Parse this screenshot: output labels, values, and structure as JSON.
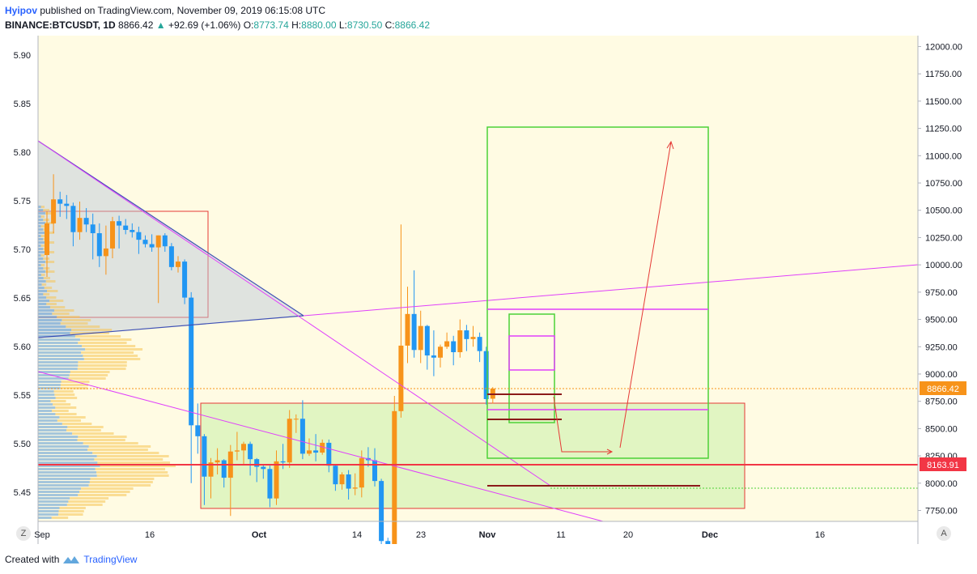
{
  "header": {
    "author": "Hyipov",
    "published_text": "published on TradingView.com, November 09, 2019 06:15:08 UTC",
    "symbol": "BINANCE:BTCUSDT, 1D",
    "last_price": "8866.42",
    "change": "+92.69 (+1.06%)",
    "open_label": "O:",
    "open": "8773.74",
    "high_label": "H:",
    "high": "8880.00",
    "low_label": "L:",
    "low": "8730.50",
    "close_label": "C:",
    "close": "8866.42"
  },
  "footer": {
    "created_with": "Created with",
    "brand": "TradingView"
  },
  "buttons": {
    "left": "Z",
    "right": "A"
  },
  "colors": {
    "background": "#fffbe3",
    "up": "#f7931a",
    "down": "#2196f3",
    "green_box": "#4cd137",
    "red_box": "#e53935",
    "magenta": "#e040fb",
    "blue_line": "#3f51b5",
    "price_tag": "#f7931a",
    "level_tag": "#f23645"
  },
  "chart_data": {
    "type": "candlestick",
    "title": "",
    "left_axis": {
      "ticks": [
        "5.90",
        "5.85",
        "5.80",
        "5.75",
        "5.70",
        "5.65",
        "5.60",
        "5.55",
        "5.50",
        "5.45"
      ],
      "range": [
        5.42,
        5.92
      ]
    },
    "right_axis": {
      "ticks": [
        "12000.00",
        "11750.00",
        "11500.00",
        "11250.00",
        "11000.00",
        "10750.00",
        "10500.00",
        "10250.00",
        "10000.00",
        "9750.00",
        "9500.00",
        "9250.00",
        "9000.00",
        "8750.00",
        "8500.00",
        "8250.00",
        "8000.00",
        "7750.00"
      ],
      "range": [
        7650,
        12100
      ]
    },
    "x_ticks": [
      "Sep",
      "16",
      "Oct",
      "14",
      "23",
      "Nov",
      "11",
      "20",
      "Dec",
      "16"
    ],
    "last_price_tag": "8866.42",
    "level_tag": "8163.91",
    "candles": [
      {
        "d": "Sep 02",
        "o": 10090,
        "h": 10490,
        "l": 9890,
        "c": 10380
      },
      {
        "d": "Sep 03",
        "o": 10380,
        "h": 10830,
        "l": 10290,
        "c": 10600
      },
      {
        "d": "Sep 04",
        "o": 10600,
        "h": 10670,
        "l": 10440,
        "c": 10560
      },
      {
        "d": "Sep 05",
        "o": 10560,
        "h": 10640,
        "l": 10420,
        "c": 10540
      },
      {
        "d": "Sep 06",
        "o": 10540,
        "h": 10570,
        "l": 10170,
        "c": 10300
      },
      {
        "d": "Sep 07",
        "o": 10300,
        "h": 10580,
        "l": 10230,
        "c": 10430
      },
      {
        "d": "Sep 08",
        "o": 10430,
        "h": 10520,
        "l": 10300,
        "c": 10370
      },
      {
        "d": "Sep 09",
        "o": 10370,
        "h": 10470,
        "l": 10050,
        "c": 10290
      },
      {
        "d": "Sep 10",
        "o": 10290,
        "h": 10380,
        "l": 9980,
        "c": 10080
      },
      {
        "d": "Sep 11",
        "o": 10080,
        "h": 10360,
        "l": 9910,
        "c": 10150
      },
      {
        "d": "Sep 12",
        "o": 10150,
        "h": 10440,
        "l": 10060,
        "c": 10400
      },
      {
        "d": "Sep 13",
        "o": 10400,
        "h": 10450,
        "l": 10150,
        "c": 10360
      },
      {
        "d": "Sep 14",
        "o": 10360,
        "h": 10420,
        "l": 10280,
        "c": 10320
      },
      {
        "d": "Sep 15",
        "o": 10320,
        "h": 10380,
        "l": 10250,
        "c": 10300
      },
      {
        "d": "Sep 16",
        "o": 10300,
        "h": 10350,
        "l": 10100,
        "c": 10230
      },
      {
        "d": "Sep 17",
        "o": 10230,
        "h": 10270,
        "l": 10160,
        "c": 10190
      },
      {
        "d": "Sep 18",
        "o": 10190,
        "h": 10280,
        "l": 10120,
        "c": 10160
      },
      {
        "d": "Sep 19",
        "o": 10160,
        "h": 10270,
        "l": 9650,
        "c": 10270
      },
      {
        "d": "Sep 20",
        "o": 10270,
        "h": 10290,
        "l": 10120,
        "c": 10170
      },
      {
        "d": "Sep 21",
        "o": 10170,
        "h": 10200,
        "l": 9950,
        "c": 9980
      },
      {
        "d": "Sep 22",
        "o": 9980,
        "h": 10080,
        "l": 9930,
        "c": 10030
      },
      {
        "d": "Sep 23",
        "o": 10030,
        "h": 10050,
        "l": 9640,
        "c": 9700
      },
      {
        "d": "Sep 24",
        "o": 9700,
        "h": 9750,
        "l": 8000,
        "c": 8530
      },
      {
        "d": "Sep 25",
        "o": 8530,
        "h": 8730,
        "l": 8270,
        "c": 8430
      },
      {
        "d": "Sep 26",
        "o": 8430,
        "h": 8450,
        "l": 7800,
        "c": 8060
      },
      {
        "d": "Sep 27",
        "o": 8060,
        "h": 8230,
        "l": 7860,
        "c": 8190
      },
      {
        "d": "Sep 28",
        "o": 8190,
        "h": 8320,
        "l": 8080,
        "c": 8210
      },
      {
        "d": "Sep 29",
        "o": 8210,
        "h": 8220,
        "l": 7960,
        "c": 8050
      },
      {
        "d": "Sep 30",
        "o": 8050,
        "h": 8350,
        "l": 7700,
        "c": 8290
      },
      {
        "d": "Oct 01",
        "o": 8290,
        "h": 8470,
        "l": 8210,
        "c": 8300
      },
      {
        "d": "Oct 02",
        "o": 8300,
        "h": 8380,
        "l": 8170,
        "c": 8360
      },
      {
        "d": "Oct 03",
        "o": 8360,
        "h": 8380,
        "l": 8070,
        "c": 8220
      },
      {
        "d": "Oct 04",
        "o": 8220,
        "h": 8230,
        "l": 8010,
        "c": 8150
      },
      {
        "d": "Oct 05",
        "o": 8150,
        "h": 8170,
        "l": 8040,
        "c": 8130
      },
      {
        "d": "Oct 06",
        "o": 8130,
        "h": 8160,
        "l": 7780,
        "c": 7860
      },
      {
        "d": "Oct 07",
        "o": 7860,
        "h": 8300,
        "l": 7800,
        "c": 8200
      },
      {
        "d": "Oct 08",
        "o": 8200,
        "h": 8360,
        "l": 8130,
        "c": 8190
      },
      {
        "d": "Oct 09",
        "o": 8190,
        "h": 8670,
        "l": 8140,
        "c": 8590
      },
      {
        "d": "Oct 10",
        "o": 8590,
        "h": 8630,
        "l": 8460,
        "c": 8590
      },
      {
        "d": "Oct 11",
        "o": 8590,
        "h": 8760,
        "l": 8220,
        "c": 8270
      },
      {
        "d": "Oct 12",
        "o": 8270,
        "h": 8410,
        "l": 8250,
        "c": 8300
      },
      {
        "d": "Oct 13",
        "o": 8300,
        "h": 8450,
        "l": 8200,
        "c": 8280
      },
      {
        "d": "Oct 14",
        "o": 8280,
        "h": 8400,
        "l": 8260,
        "c": 8370
      },
      {
        "d": "Oct 15",
        "o": 8370,
        "h": 8400,
        "l": 8100,
        "c": 8160
      },
      {
        "d": "Oct 16",
        "o": 8160,
        "h": 8170,
        "l": 7930,
        "c": 7990
      },
      {
        "d": "Oct 17",
        "o": 7990,
        "h": 8100,
        "l": 7940,
        "c": 8080
      },
      {
        "d": "Oct 18",
        "o": 8080,
        "h": 8120,
        "l": 7850,
        "c": 7950
      },
      {
        "d": "Oct 19",
        "o": 7950,
        "h": 8090,
        "l": 7890,
        "c": 7960
      },
      {
        "d": "Oct 20",
        "o": 7960,
        "h": 8300,
        "l": 7870,
        "c": 8230
      },
      {
        "d": "Oct 21",
        "o": 8230,
        "h": 8330,
        "l": 8150,
        "c": 8210
      },
      {
        "d": "Oct 22",
        "o": 8210,
        "h": 8320,
        "l": 7970,
        "c": 8020
      },
      {
        "d": "Oct 23",
        "o": 8020,
        "h": 8040,
        "l": 7340,
        "c": 7470
      },
      {
        "d": "Oct 24",
        "o": 7470,
        "h": 7500,
        "l": 7370,
        "c": 7410
      },
      {
        "d": "Oct 25",
        "o": 7410,
        "h": 8800,
        "l": 7400,
        "c": 8660
      },
      {
        "d": "Oct 26",
        "o": 8660,
        "h": 10370,
        "l": 8600,
        "c": 9260
      },
      {
        "d": "Oct 27",
        "o": 9260,
        "h": 9800,
        "l": 9100,
        "c": 9550
      },
      {
        "d": "Oct 28",
        "o": 9550,
        "h": 9950,
        "l": 9150,
        "c": 9220
      },
      {
        "d": "Oct 29",
        "o": 9220,
        "h": 9580,
        "l": 9100,
        "c": 9440
      },
      {
        "d": "Oct 30",
        "o": 9440,
        "h": 9450,
        "l": 9040,
        "c": 9170
      },
      {
        "d": "Oct 31",
        "o": 9170,
        "h": 9400,
        "l": 8980,
        "c": 9150
      },
      {
        "d": "Nov 01",
        "o": 9150,
        "h": 9270,
        "l": 9060,
        "c": 9250
      },
      {
        "d": "Nov 02",
        "o": 9250,
        "h": 9380,
        "l": 9230,
        "c": 9300
      },
      {
        "d": "Nov 03",
        "o": 9300,
        "h": 9350,
        "l": 9080,
        "c": 9200
      },
      {
        "d": "Nov 04",
        "o": 9200,
        "h": 9500,
        "l": 9150,
        "c": 9400
      },
      {
        "d": "Nov 05",
        "o": 9400,
        "h": 9450,
        "l": 9210,
        "c": 9320
      },
      {
        "d": "Nov 06",
        "o": 9320,
        "h": 9440,
        "l": 9250,
        "c": 9340
      },
      {
        "d": "Nov 07",
        "o": 9340,
        "h": 9380,
        "l": 9110,
        "c": 9210
      },
      {
        "d": "Nov 08",
        "o": 9210,
        "h": 9250,
        "l": 8720,
        "c": 8770
      },
      {
        "d": "Nov 09",
        "o": 8773.74,
        "h": 8880,
        "l": 8730.5,
        "c": 8866.42
      }
    ]
  }
}
